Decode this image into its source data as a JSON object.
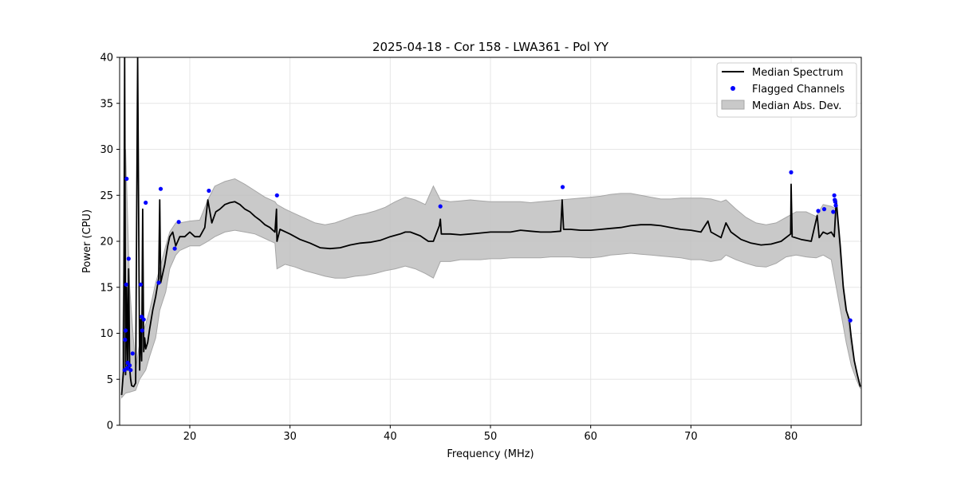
{
  "chart_data": {
    "type": "line",
    "title": "2025-04-18 - Cor 158 - LWA361 - Pol YY",
    "xlabel": "Frequency (MHz)",
    "ylabel": "Power (CPU)",
    "xlim": [
      13.0,
      87.0
    ],
    "ylim": [
      0,
      40
    ],
    "grid": true,
    "legend_position": "upper right",
    "x_ticks": [
      20,
      30,
      40,
      50,
      60,
      70,
      80
    ],
    "y_ticks": [
      0,
      5,
      10,
      15,
      20,
      25,
      30,
      35,
      40
    ],
    "colors": {
      "median": "#000000",
      "flagged": "#0000ff",
      "mad_fill": "#bfbfbf",
      "mad_edge": "#a6a6a6",
      "grid": "#e6e6e6"
    },
    "legend": [
      {
        "label": "Median Spectrum",
        "kind": "line"
      },
      {
        "label": "Flagged Channels",
        "kind": "point"
      },
      {
        "label": "Median Abs. Dev.",
        "kind": "patch"
      }
    ],
    "series": [
      {
        "name": "Median Spectrum",
        "x": [
          13.2,
          13.4,
          13.5,
          13.6,
          13.7,
          13.8,
          13.9,
          14.0,
          14.1,
          14.2,
          14.4,
          14.6,
          14.8,
          15.0,
          15.1,
          15.2,
          15.3,
          15.4,
          15.5,
          15.6,
          15.8,
          16.0,
          16.3,
          16.6,
          16.9,
          17.0,
          17.1,
          17.2,
          17.5,
          17.8,
          18.0,
          18.3,
          18.6,
          19.0,
          19.5,
          20.0,
          20.5,
          21.0,
          21.5,
          21.8,
          22.2,
          22.6,
          23.0,
          23.5,
          24.0,
          24.5,
          25.0,
          25.5,
          26.0,
          26.5,
          27.0,
          27.5,
          28.0,
          28.5,
          28.65,
          28.7,
          29.0,
          30.0,
          31.0,
          32.0,
          33.0,
          34.0,
          35.0,
          36.0,
          37.0,
          38.0,
          39.0,
          40.0,
          41.0,
          41.5,
          42.0,
          43.0,
          43.8,
          44.3,
          44.9,
          45.0,
          45.1,
          46.0,
          47.0,
          48.0,
          49.0,
          50.0,
          51.0,
          52.0,
          53.0,
          54.0,
          55.0,
          56.0,
          57.0,
          57.15,
          57.3,
          58.0,
          59.0,
          60.0,
          61.0,
          62.0,
          63.0,
          64.0,
          65.0,
          66.0,
          67.0,
          68.0,
          69.0,
          70.0,
          71.0,
          71.7,
          72.0,
          73.0,
          73.5,
          74.0,
          75.0,
          76.0,
          77.0,
          78.0,
          79.0,
          79.95,
          80.0,
          80.1,
          81.0,
          82.0,
          82.6,
          82.8,
          83.2,
          83.6,
          84.0,
          84.3,
          84.5,
          84.7,
          84.9,
          85.2,
          85.5,
          85.8,
          86.0,
          86.3,
          86.6,
          86.9
        ],
        "y": [
          3.3,
          6.0,
          40.0,
          5.5,
          15.0,
          6.0,
          17.0,
          6.2,
          5.0,
          4.3,
          4.2,
          4.6,
          40.0,
          6.0,
          11.5,
          7.0,
          23.5,
          8.0,
          9.5,
          8.3,
          9.0,
          10.5,
          12.5,
          14.0,
          16.0,
          24.5,
          15.5,
          16.0,
          17.5,
          19.5,
          20.5,
          21.0,
          19.5,
          20.5,
          20.5,
          21.0,
          20.5,
          20.5,
          21.5,
          24.5,
          22.0,
          23.2,
          23.5,
          24.0,
          24.2,
          24.3,
          24.0,
          23.5,
          23.2,
          22.7,
          22.3,
          21.8,
          21.5,
          21.0,
          23.5,
          20.0,
          21.3,
          20.8,
          20.2,
          19.8,
          19.3,
          19.2,
          19.3,
          19.6,
          19.8,
          19.9,
          20.1,
          20.5,
          20.8,
          21.0,
          21.0,
          20.6,
          20.0,
          20.0,
          21.7,
          22.4,
          20.8,
          20.8,
          20.7,
          20.8,
          20.9,
          21.0,
          21.0,
          21.0,
          21.2,
          21.1,
          21.0,
          21.0,
          21.1,
          24.5,
          21.3,
          21.3,
          21.2,
          21.2,
          21.3,
          21.4,
          21.5,
          21.7,
          21.8,
          21.8,
          21.7,
          21.5,
          21.3,
          21.2,
          21.0,
          22.2,
          21.0,
          20.4,
          22.0,
          21.0,
          20.2,
          19.8,
          19.6,
          19.7,
          20.0,
          20.8,
          26.2,
          20.5,
          20.2,
          20.0,
          22.8,
          20.4,
          21.0,
          20.8,
          21.0,
          20.5,
          24.5,
          22.0,
          19.5,
          15.0,
          12.5,
          11.5,
          9.5,
          7.0,
          5.5,
          4.2
        ]
      },
      {
        "name": "Median Abs. Dev.",
        "x": [
          13.2,
          13.6,
          14.0,
          14.6,
          15.0,
          15.6,
          16.0,
          16.6,
          17.0,
          17.6,
          18.0,
          18.6,
          19.0,
          20.0,
          21.0,
          21.8,
          22.5,
          23.5,
          24.5,
          25.5,
          26.5,
          27.5,
          28.5,
          28.7,
          29.5,
          30.5,
          31.5,
          32.5,
          33.5,
          34.5,
          35.5,
          36.5,
          37.5,
          38.5,
          39.5,
          40.5,
          41.5,
          42.5,
          43.5,
          44.3,
          45.0,
          46.0,
          47.0,
          48.0,
          49.0,
          50.0,
          51.0,
          52.0,
          53.0,
          54.0,
          55.0,
          56.0,
          57.0,
          58.0,
          59.0,
          60.0,
          61.0,
          62.0,
          63.0,
          64.0,
          65.0,
          66.0,
          67.0,
          68.0,
          69.0,
          70.0,
          71.0,
          72.0,
          73.0,
          73.5,
          74.5,
          75.5,
          76.5,
          77.5,
          78.5,
          79.5,
          80.5,
          81.5,
          82.5,
          83.2,
          84.0,
          84.5,
          85.0,
          85.5,
          86.0,
          86.5,
          86.9
        ],
        "lower": [
          3.0,
          3.5,
          3.6,
          3.8,
          5.0,
          6.0,
          7.5,
          9.5,
          12.5,
          14.5,
          17.0,
          18.5,
          19.0,
          19.5,
          19.5,
          20.0,
          20.5,
          21.0,
          21.2,
          21.0,
          20.8,
          20.3,
          19.8,
          17.0,
          17.5,
          17.2,
          16.8,
          16.5,
          16.2,
          16.0,
          16.0,
          16.2,
          16.3,
          16.5,
          16.8,
          17.0,
          17.3,
          17.0,
          16.5,
          16.0,
          17.8,
          17.8,
          18.0,
          18.0,
          18.0,
          18.1,
          18.1,
          18.2,
          18.2,
          18.2,
          18.2,
          18.3,
          18.3,
          18.3,
          18.2,
          18.2,
          18.3,
          18.5,
          18.6,
          18.7,
          18.6,
          18.5,
          18.4,
          18.3,
          18.2,
          18.0,
          18.0,
          17.8,
          18.0,
          18.5,
          18.0,
          17.6,
          17.3,
          17.2,
          17.6,
          18.3,
          18.5,
          18.3,
          18.2,
          18.5,
          18.0,
          15.0,
          12.0,
          9.0,
          6.5,
          5.0,
          4.0
        ],
        "upper": [
          3.6,
          30.0,
          15.0,
          6.0,
          9.0,
          11.0,
          12.5,
          15.5,
          17.0,
          19.5,
          21.0,
          22.0,
          22.0,
          22.2,
          22.3,
          24.5,
          26.0,
          26.5,
          26.8,
          26.2,
          25.5,
          24.8,
          24.3,
          24.0,
          23.5,
          23.0,
          22.5,
          22.0,
          21.8,
          22.0,
          22.4,
          22.8,
          23.0,
          23.3,
          23.7,
          24.3,
          24.8,
          24.5,
          24.0,
          26.0,
          24.5,
          24.3,
          24.4,
          24.5,
          24.4,
          24.3,
          24.3,
          24.3,
          24.3,
          24.2,
          24.3,
          24.4,
          24.5,
          24.6,
          24.7,
          24.8,
          24.9,
          25.1,
          25.2,
          25.2,
          25.0,
          24.8,
          24.6,
          24.6,
          24.7,
          24.7,
          24.7,
          24.6,
          24.3,
          24.5,
          23.5,
          22.6,
          22.0,
          21.8,
          22.0,
          22.6,
          23.2,
          23.2,
          22.7,
          24.0,
          23.8,
          23.5,
          17.0,
          13.0,
          8.5,
          6.0,
          4.3
        ]
      },
      {
        "name": "Flagged Channels",
        "x": [
          13.5,
          13.55,
          13.6,
          13.65,
          13.7,
          13.75,
          13.8,
          13.9,
          14.0,
          14.1,
          14.3,
          15.1,
          15.2,
          15.25,
          15.4,
          15.6,
          16.9,
          17.1,
          18.5,
          18.9,
          21.9,
          28.7,
          45.0,
          57.2,
          80.0,
          82.7,
          83.3,
          84.2,
          84.3,
          84.35,
          84.4,
          84.45,
          85.9
        ],
        "y": [
          6.0,
          9.3,
          10.3,
          15.3,
          26.8,
          6.2,
          6.8,
          18.1,
          6.5,
          6.0,
          7.8,
          15.3,
          11.8,
          10.3,
          11.5,
          24.2,
          15.5,
          25.7,
          19.2,
          22.1,
          25.5,
          25.0,
          23.8,
          25.9,
          27.5,
          23.3,
          23.5,
          23.2,
          25.0,
          24.5,
          24.3,
          23.9,
          11.4
        ]
      }
    ]
  }
}
